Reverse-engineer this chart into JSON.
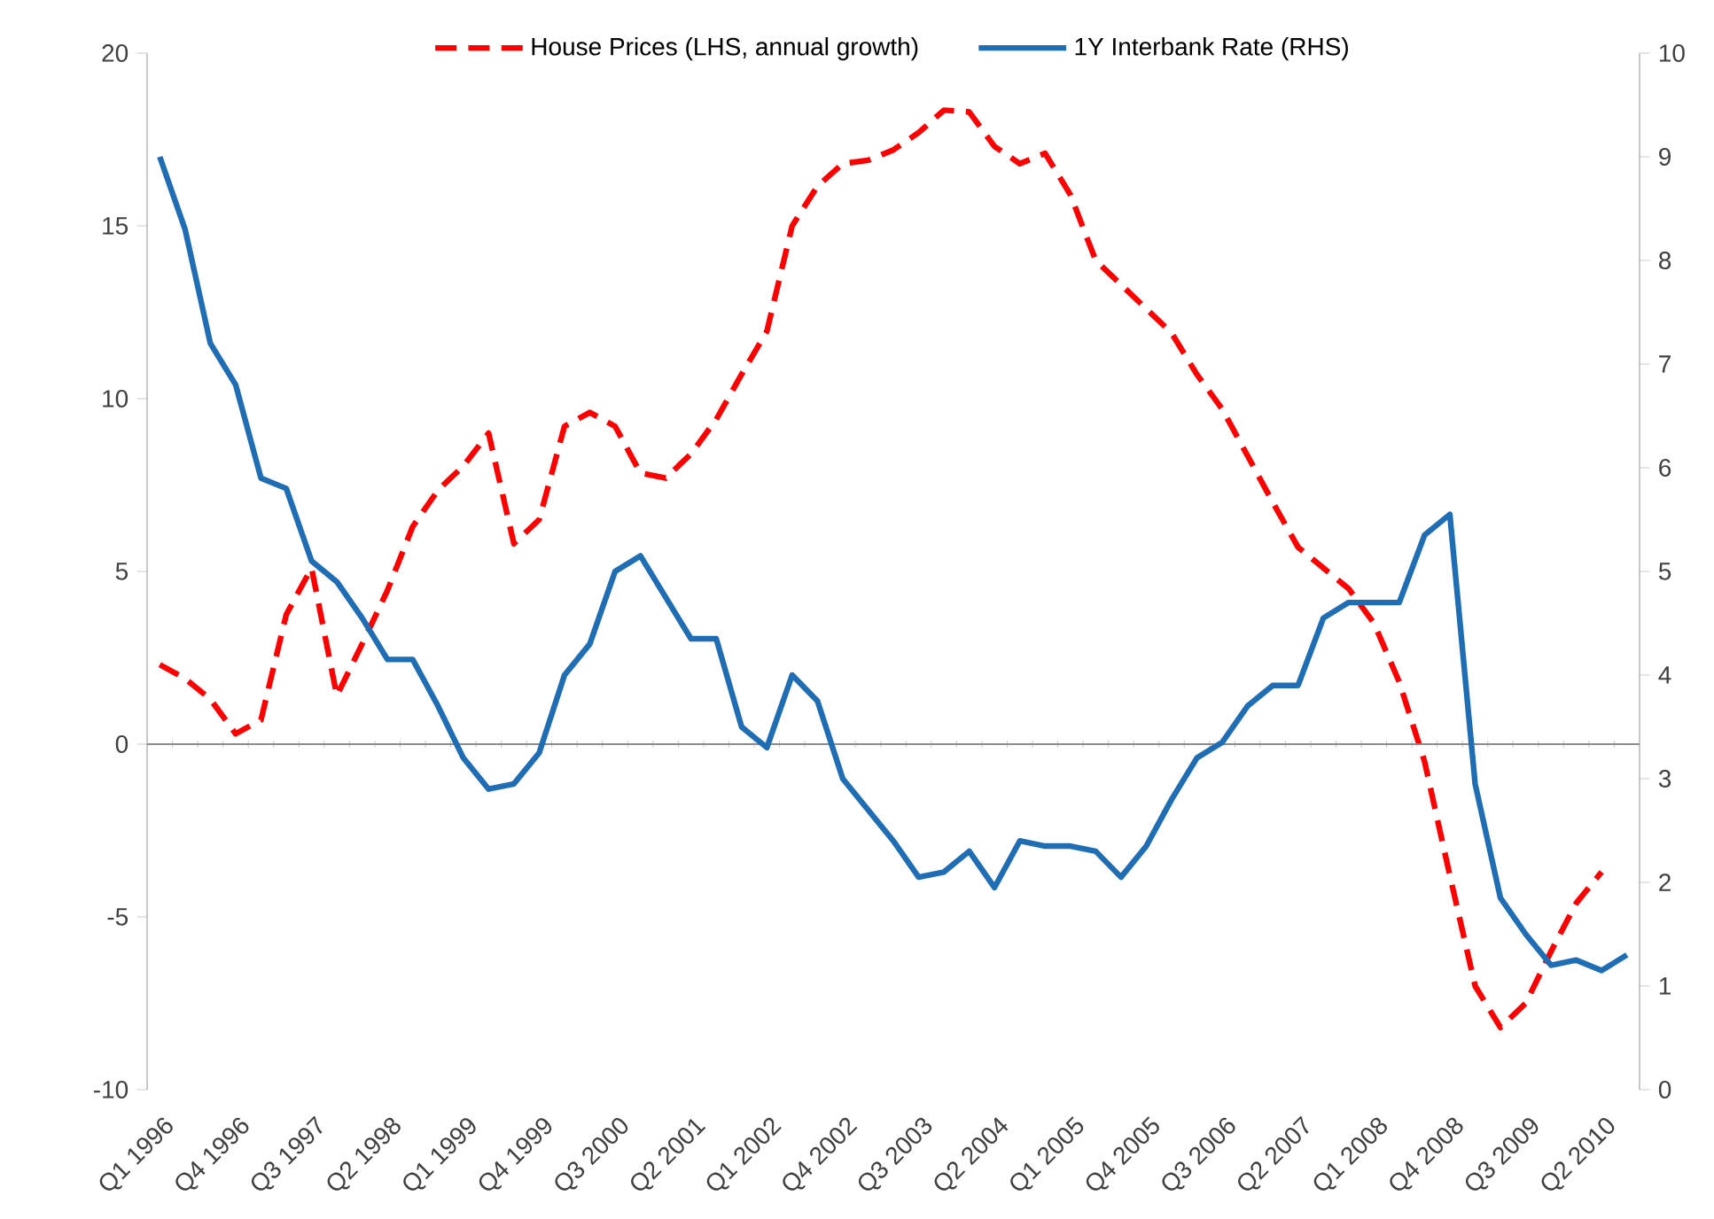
{
  "chart_data": {
    "type": "line",
    "categories": [
      "Q1 1996",
      null,
      null,
      "Q4 1996",
      null,
      null,
      "Q3 1997",
      null,
      null,
      "Q2 1998",
      null,
      null,
      "Q1 1999",
      null,
      null,
      "Q4 1999",
      null,
      null,
      "Q3 2000",
      null,
      null,
      "Q2 2001",
      null,
      null,
      "Q1 2002",
      null,
      null,
      "Q4 2002",
      null,
      null,
      "Q3 2003",
      null,
      null,
      "Q2 2004",
      null,
      null,
      "Q1 2005",
      null,
      null,
      "Q4 2005",
      null,
      null,
      "Q3 2006",
      null,
      null,
      "Q2 2007",
      null,
      null,
      "Q1 2008",
      null,
      null,
      "Q4 2008",
      null,
      null,
      "Q3 2009",
      null,
      null,
      "Q2 2010",
      null
    ],
    "series": [
      {
        "name": "House Prices (LHS, annual growth)",
        "color": "#ff0000",
        "line_style": "dashed",
        "axis": "y",
        "values": [
          2.3,
          1.9,
          1.3,
          0.3,
          0.7,
          3.75,
          5.1,
          1.4,
          2.9,
          4.45,
          6.3,
          7.35,
          8.05,
          9.0,
          5.8,
          6.5,
          9.2,
          9.6,
          9.2,
          7.85,
          7.7,
          8.4,
          9.4,
          10.7,
          11.95,
          15.0,
          16.15,
          16.8,
          16.9,
          17.2,
          17.7,
          18.35,
          18.3,
          17.3,
          16.8,
          17.1,
          15.9,
          14.0,
          13.3,
          12.6,
          11.9,
          10.7,
          9.7,
          8.35,
          7.0,
          5.7,
          5.1,
          4.5,
          3.5,
          1.8,
          -0.5,
          -3.8,
          -7.0,
          -8.2,
          -7.5,
          -6.0,
          -4.6,
          -3.7,
          null
        ]
      },
      {
        "name": "1Y Interbank Rate (RHS)",
        "color": "#1f6db5",
        "line_style": "solid",
        "axis": "y2",
        "values": [
          9.0,
          8.3,
          7.2,
          6.8,
          5.9,
          5.8,
          5.1,
          4.9,
          4.55,
          4.15,
          4.15,
          3.7,
          3.2,
          2.9,
          2.95,
          3.25,
          4.0,
          4.3,
          5.0,
          5.15,
          4.75,
          4.35,
          4.35,
          3.5,
          3.3,
          4.0,
          3.75,
          3.0,
          2.7,
          2.4,
          2.05,
          2.1,
          2.3,
          1.95,
          2.4,
          2.35,
          2.35,
          2.3,
          2.05,
          2.35,
          2.8,
          3.2,
          3.35,
          3.7,
          3.9,
          3.9,
          4.55,
          4.7,
          4.7,
          4.7,
          5.35,
          5.55,
          2.95,
          1.85,
          1.5,
          1.2,
          1.25,
          1.15,
          1.3
        ]
      }
    ],
    "ylim": [
      -10,
      20
    ],
    "yticks": [
      -10,
      -5,
      0,
      5,
      10,
      15,
      20
    ],
    "y2lim": [
      0,
      10
    ],
    "y2ticks": [
      0,
      1,
      2,
      3,
      4,
      5,
      6,
      7,
      8,
      9,
      10
    ],
    "legend": "top"
  }
}
